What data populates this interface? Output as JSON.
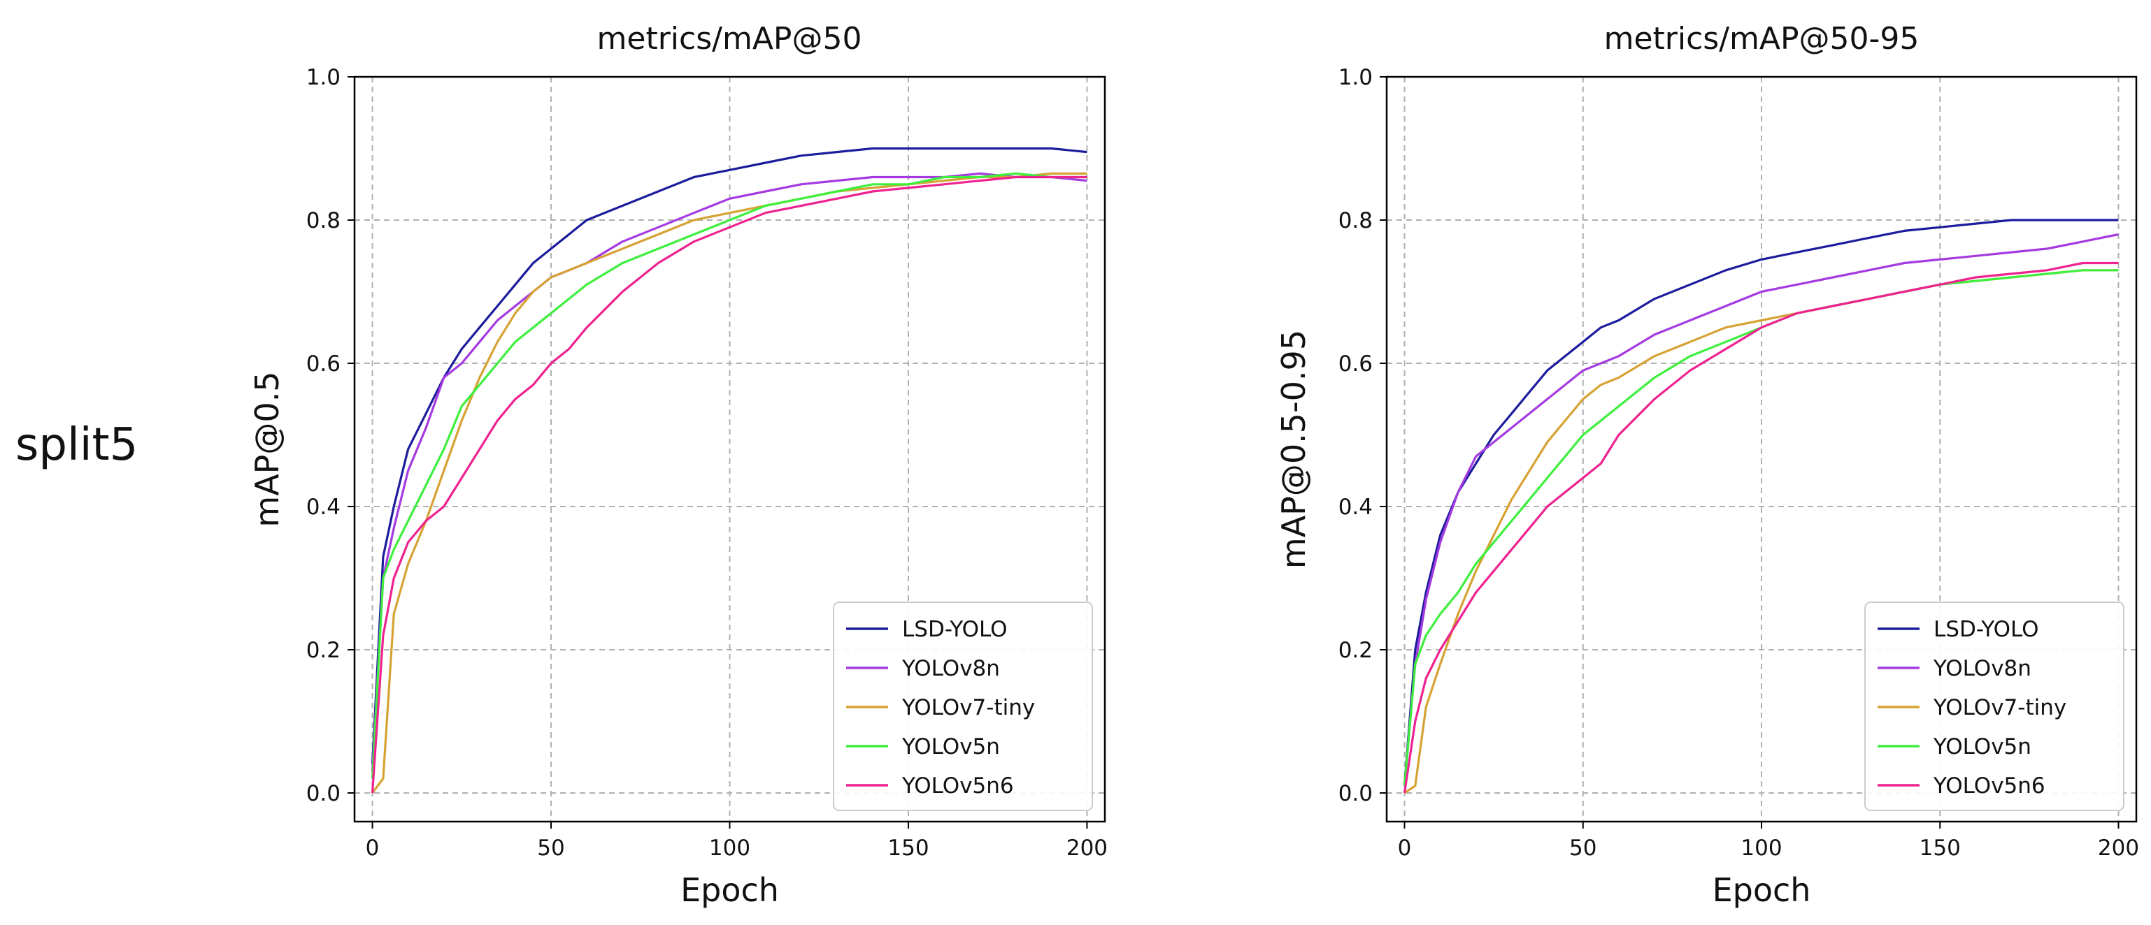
{
  "row_label": "split5",
  "colors": {
    "LSD-YOLO": "#1c1c9c",
    "YOLOv8n": "#a43ae0",
    "YOLOv7-tiny": "#d6a233",
    "YOLOv5n": "#3eef3e",
    "YOLOv5n6": "#ee2290"
  },
  "chart_data": [
    {
      "type": "line",
      "title": "metrics/mAP@50",
      "xlabel": "Epoch",
      "ylabel": "mAP@0.5",
      "xlim": [
        -5,
        205
      ],
      "ylim": [
        -0.04,
        1.0
      ],
      "xticks": [
        0,
        50,
        100,
        150,
        200
      ],
      "yticks": [
        0.0,
        0.2,
        0.4,
        0.6,
        0.8,
        1.0
      ],
      "ytick_labels": [
        "0.0",
        "0.2",
        "0.4",
        "0.6",
        "0.8",
        "1.0"
      ],
      "grid": true,
      "legend_position": "lower-right",
      "series": [
        {
          "name": "LSD-YOLO",
          "x": [
            0,
            3,
            6,
            10,
            15,
            20,
            25,
            30,
            35,
            40,
            45,
            50,
            55,
            60,
            70,
            80,
            90,
            100,
            110,
            120,
            130,
            140,
            150,
            160,
            170,
            180,
            190,
            200
          ],
          "values": [
            0.04,
            0.33,
            0.4,
            0.48,
            0.53,
            0.58,
            0.62,
            0.65,
            0.68,
            0.71,
            0.74,
            0.76,
            0.78,
            0.8,
            0.82,
            0.84,
            0.86,
            0.87,
            0.88,
            0.89,
            0.895,
            0.9,
            0.9,
            0.9,
            0.9,
            0.9,
            0.9,
            0.895
          ]
        },
        {
          "name": "YOLOv8n",
          "x": [
            0,
            3,
            6,
            10,
            15,
            20,
            25,
            30,
            35,
            40,
            45,
            50,
            55,
            60,
            70,
            80,
            90,
            100,
            110,
            120,
            130,
            140,
            150,
            160,
            170,
            180,
            190,
            200
          ],
          "values": [
            0.03,
            0.3,
            0.37,
            0.45,
            0.51,
            0.58,
            0.6,
            0.63,
            0.66,
            0.68,
            0.7,
            0.72,
            0.73,
            0.74,
            0.77,
            0.79,
            0.81,
            0.83,
            0.84,
            0.85,
            0.855,
            0.86,
            0.86,
            0.86,
            0.865,
            0.86,
            0.86,
            0.855
          ]
        },
        {
          "name": "YOLOv7-tiny",
          "x": [
            0,
            3,
            6,
            10,
            15,
            20,
            25,
            30,
            35,
            40,
            45,
            50,
            55,
            60,
            70,
            80,
            90,
            100,
            110,
            120,
            130,
            140,
            150,
            160,
            170,
            180,
            190,
            200
          ],
          "values": [
            0.0,
            0.02,
            0.25,
            0.32,
            0.38,
            0.45,
            0.52,
            0.58,
            0.63,
            0.67,
            0.7,
            0.72,
            0.73,
            0.74,
            0.76,
            0.78,
            0.8,
            0.81,
            0.82,
            0.83,
            0.84,
            0.845,
            0.85,
            0.855,
            0.86,
            0.86,
            0.865,
            0.865
          ]
        },
        {
          "name": "YOLOv5n",
          "x": [
            0,
            3,
            6,
            10,
            15,
            20,
            25,
            30,
            35,
            40,
            45,
            50,
            55,
            60,
            70,
            80,
            90,
            100,
            110,
            120,
            130,
            140,
            150,
            160,
            170,
            180,
            190,
            200
          ],
          "values": [
            0.02,
            0.3,
            0.34,
            0.38,
            0.43,
            0.48,
            0.54,
            0.57,
            0.6,
            0.63,
            0.65,
            0.67,
            0.69,
            0.71,
            0.74,
            0.76,
            0.78,
            0.8,
            0.82,
            0.83,
            0.84,
            0.85,
            0.85,
            0.86,
            0.86,
            0.865,
            0.86,
            0.86
          ]
        },
        {
          "name": "YOLOv5n6",
          "x": [
            0,
            3,
            6,
            10,
            15,
            20,
            25,
            30,
            35,
            40,
            45,
            50,
            55,
            60,
            70,
            80,
            90,
            100,
            110,
            120,
            130,
            140,
            150,
            160,
            170,
            180,
            190,
            200
          ],
          "values": [
            0.0,
            0.22,
            0.3,
            0.35,
            0.38,
            0.4,
            0.44,
            0.48,
            0.52,
            0.55,
            0.57,
            0.6,
            0.62,
            0.65,
            0.7,
            0.74,
            0.77,
            0.79,
            0.81,
            0.82,
            0.83,
            0.84,
            0.845,
            0.85,
            0.855,
            0.86,
            0.86,
            0.86
          ]
        }
      ]
    },
    {
      "type": "line",
      "title": "metrics/mAP@50-95",
      "xlabel": "Epoch",
      "ylabel": "mAP@0.5-0.95",
      "xlim": [
        -5,
        205
      ],
      "ylim": [
        -0.04,
        1.0
      ],
      "xticks": [
        0,
        50,
        100,
        150,
        200
      ],
      "yticks": [
        0.0,
        0.2,
        0.4,
        0.6,
        0.8,
        1.0
      ],
      "ytick_labels": [
        "0.0",
        "0.2",
        "0.4",
        "0.6",
        "0.8",
        "1.0"
      ],
      "grid": true,
      "legend_position": "lower-right",
      "series": [
        {
          "name": "LSD-YOLO",
          "x": [
            0,
            3,
            6,
            10,
            15,
            20,
            25,
            30,
            35,
            40,
            45,
            50,
            55,
            60,
            70,
            80,
            90,
            100,
            110,
            120,
            130,
            140,
            150,
            160,
            170,
            180,
            190,
            200
          ],
          "values": [
            0.01,
            0.2,
            0.28,
            0.36,
            0.42,
            0.46,
            0.5,
            0.53,
            0.56,
            0.59,
            0.61,
            0.63,
            0.65,
            0.66,
            0.69,
            0.71,
            0.73,
            0.745,
            0.755,
            0.765,
            0.775,
            0.785,
            0.79,
            0.795,
            0.8,
            0.8,
            0.8,
            0.8
          ]
        },
        {
          "name": "YOLOv8n",
          "x": [
            0,
            3,
            6,
            10,
            15,
            20,
            25,
            30,
            35,
            40,
            45,
            50,
            55,
            60,
            70,
            80,
            90,
            100,
            110,
            120,
            130,
            140,
            150,
            160,
            170,
            180,
            190,
            200
          ],
          "values": [
            0.01,
            0.18,
            0.27,
            0.35,
            0.42,
            0.47,
            0.49,
            0.51,
            0.53,
            0.55,
            0.57,
            0.59,
            0.6,
            0.61,
            0.64,
            0.66,
            0.68,
            0.7,
            0.71,
            0.72,
            0.73,
            0.74,
            0.745,
            0.75,
            0.755,
            0.76,
            0.77,
            0.78
          ]
        },
        {
          "name": "YOLOv7-tiny",
          "x": [
            0,
            3,
            6,
            10,
            15,
            20,
            25,
            30,
            35,
            40,
            45,
            50,
            55,
            60,
            70,
            80,
            90,
            100,
            110,
            120,
            130,
            140,
            150,
            160,
            170,
            180,
            190,
            200
          ],
          "values": [
            0.0,
            0.01,
            0.12,
            0.18,
            0.25,
            0.31,
            0.36,
            0.41,
            0.45,
            0.49,
            0.52,
            0.55,
            0.57,
            0.58,
            0.61,
            0.63,
            0.65,
            0.66,
            0.67,
            0.68,
            0.69,
            0.7,
            0.71,
            0.715,
            0.72,
            0.725,
            0.73,
            0.73
          ]
        },
        {
          "name": "YOLOv5n",
          "x": [
            0,
            3,
            6,
            10,
            15,
            20,
            25,
            30,
            35,
            40,
            45,
            50,
            55,
            60,
            70,
            80,
            90,
            100,
            110,
            120,
            130,
            140,
            150,
            160,
            170,
            180,
            190,
            200
          ],
          "values": [
            0.01,
            0.18,
            0.22,
            0.25,
            0.28,
            0.32,
            0.35,
            0.38,
            0.41,
            0.44,
            0.47,
            0.5,
            0.52,
            0.54,
            0.58,
            0.61,
            0.63,
            0.65,
            0.67,
            0.68,
            0.69,
            0.7,
            0.71,
            0.715,
            0.72,
            0.725,
            0.73,
            0.73
          ]
        },
        {
          "name": "YOLOv5n6",
          "x": [
            0,
            3,
            6,
            10,
            15,
            20,
            25,
            30,
            35,
            40,
            45,
            50,
            55,
            60,
            70,
            80,
            90,
            100,
            110,
            120,
            130,
            140,
            150,
            160,
            170,
            180,
            190,
            200
          ],
          "values": [
            0.0,
            0.1,
            0.16,
            0.2,
            0.24,
            0.28,
            0.31,
            0.34,
            0.37,
            0.4,
            0.42,
            0.44,
            0.46,
            0.5,
            0.55,
            0.59,
            0.62,
            0.65,
            0.67,
            0.68,
            0.69,
            0.7,
            0.71,
            0.72,
            0.725,
            0.73,
            0.74,
            0.74
          ]
        }
      ]
    }
  ]
}
